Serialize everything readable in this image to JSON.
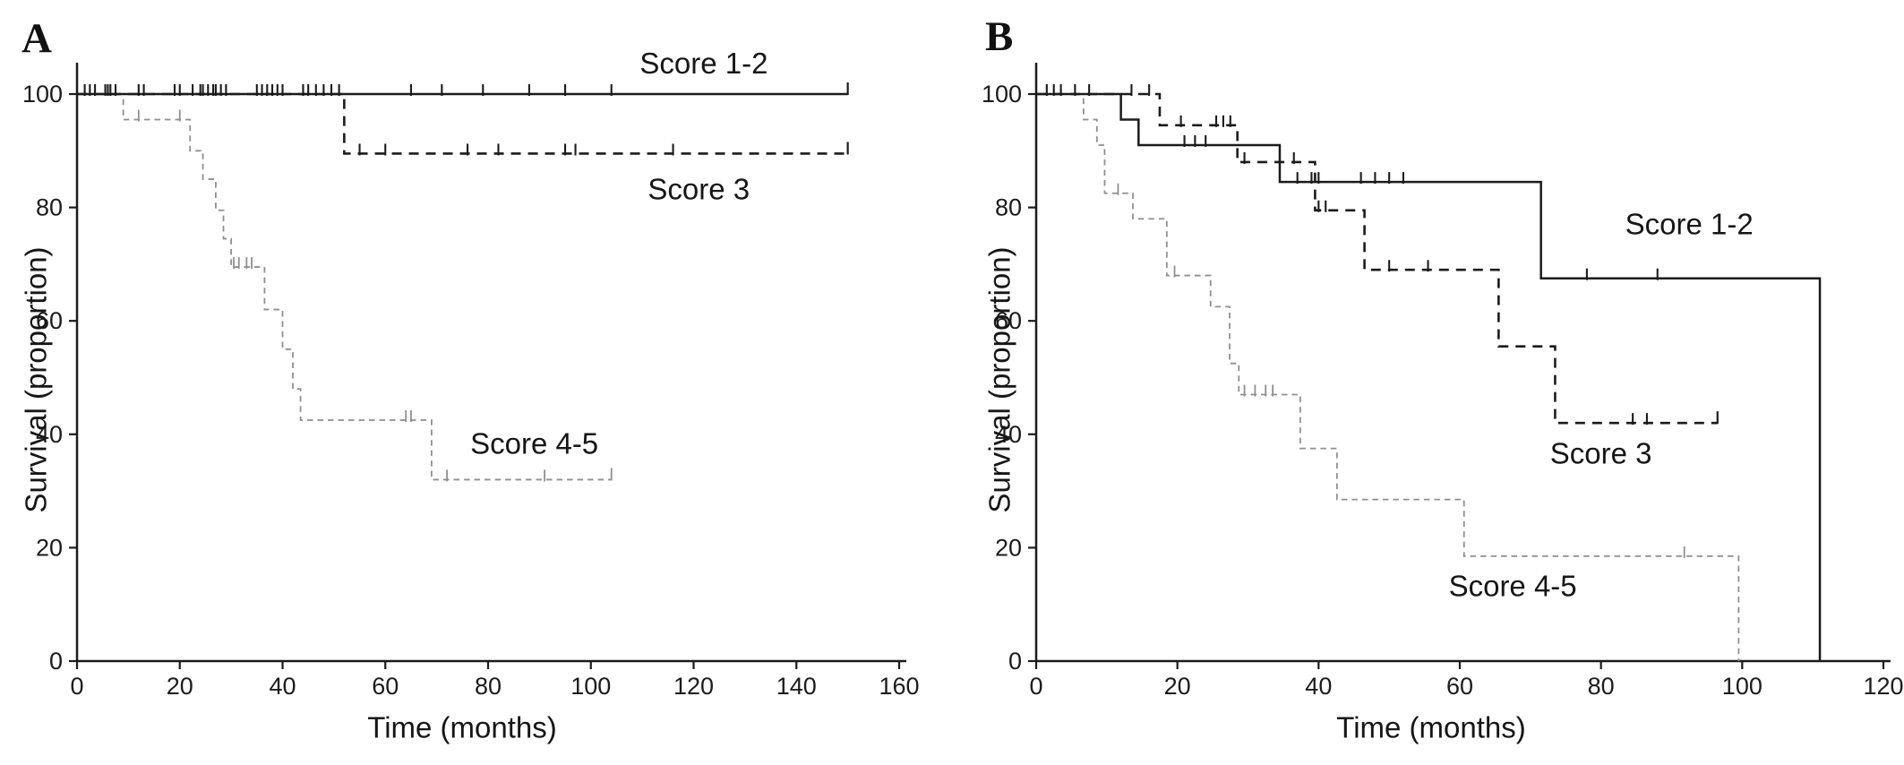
{
  "figure": {
    "background_color": "#ffffff",
    "text_color": "#161616",
    "description": "Two-panel Kaplan-Meier survival figure"
  },
  "chart_data": [
    {
      "type": "line",
      "subtype": "kaplan-meier-step",
      "panel_label": "A",
      "x_axis": {
        "title": "Time (months)",
        "min": 0,
        "max": 160,
        "ticks": [
          0,
          20,
          40,
          60,
          80,
          100,
          120,
          140,
          160
        ],
        "grid": false
      },
      "y_axis": {
        "title": "Survival (proportion)",
        "min": 0,
        "max": 100,
        "ticks": [
          0,
          20,
          40,
          60,
          80,
          100
        ],
        "grid": false
      },
      "legend_position": "labels-on-chart",
      "series": [
        {
          "name": "Score 1-2",
          "style": "solid",
          "color": "#1b1b1b",
          "stroke_width": 2.4,
          "label": {
            "text": "Score 1-2",
            "t": 122,
            "v": 105.4
          },
          "steps": [
            [
              0,
              100
            ]
          ],
          "end_t": 150,
          "end_marker": "tick",
          "censors": [
            [
              1.5,
              100
            ],
            [
              2.5,
              100
            ],
            [
              3.5,
              100
            ],
            [
              5.5,
              100
            ],
            [
              6,
              100
            ],
            [
              6.5,
              100
            ],
            [
              7.5,
              100
            ],
            [
              12,
              100
            ],
            [
              13,
              100
            ],
            [
              19,
              100
            ],
            [
              20,
              100
            ],
            [
              22.5,
              100
            ],
            [
              24,
              100
            ],
            [
              24.5,
              100
            ],
            [
              25.5,
              100
            ],
            [
              26.5,
              100
            ],
            [
              27,
              100
            ],
            [
              28,
              100
            ],
            [
              29,
              100
            ],
            [
              35,
              100
            ],
            [
              36,
              100
            ],
            [
              37,
              100
            ],
            [
              38,
              100
            ],
            [
              39,
              100
            ],
            [
              40,
              100
            ],
            [
              44,
              100
            ],
            [
              45,
              100
            ],
            [
              46.5,
              100
            ],
            [
              48,
              100
            ],
            [
              49.5,
              100
            ],
            [
              51,
              100
            ],
            [
              65,
              100
            ],
            [
              71,
              100
            ],
            [
              79,
              100
            ],
            [
              88,
              100
            ],
            [
              95,
              100
            ],
            [
              104,
              100
            ]
          ]
        },
        {
          "name": "Score 3",
          "style": "dashed",
          "color": "#1b1b1b",
          "stroke_width": 2.6,
          "label": {
            "text": "Score 3",
            "t": 121,
            "v": 83.2
          },
          "steps": [
            [
              0,
              100
            ],
            [
              52,
              89.5
            ]
          ],
          "end_t": 150,
          "end_marker": "tick",
          "censors": [
            [
              55,
              89.5
            ],
            [
              60,
              89.5
            ],
            [
              76,
              89.5
            ],
            [
              82,
              89.5
            ],
            [
              95,
              89.5
            ],
            [
              97,
              89.5
            ],
            [
              116,
              89.5
            ]
          ]
        },
        {
          "name": "Score 4-5",
          "style": "dashed",
          "color": "#8f8f8f",
          "stroke_width": 1.8,
          "label": {
            "text": "Score 4-5",
            "t": 89,
            "v": 38.3
          },
          "steps": [
            [
              0,
              100
            ],
            [
              9,
              95.5
            ],
            [
              22,
              90
            ],
            [
              24.5,
              85
            ],
            [
              27,
              79.5
            ],
            [
              28.5,
              74.5
            ],
            [
              30,
              69.5
            ],
            [
              36.5,
              62
            ],
            [
              40,
              55
            ],
            [
              42,
              48
            ],
            [
              43.5,
              42.5
            ],
            [
              69,
              32
            ]
          ],
          "end_t": 104,
          "end_marker": "tick",
          "censors": [
            [
              12,
              95.5
            ],
            [
              20,
              95.5
            ],
            [
              30.5,
              69.5
            ],
            [
              31.5,
              69.5
            ],
            [
              33,
              69.5
            ],
            [
              34,
              69.5
            ],
            [
              64,
              42.5
            ],
            [
              65,
              42.5
            ],
            [
              72,
              32
            ],
            [
              91,
              32
            ]
          ]
        }
      ]
    },
    {
      "type": "line",
      "subtype": "kaplan-meier-step",
      "panel_label": "B",
      "x_axis": {
        "title": "Time (months)",
        "min": 0,
        "max": 120,
        "ticks": [
          0,
          20,
          40,
          60,
          80,
          100,
          120
        ],
        "grid": false
      },
      "y_axis": {
        "title": "Survival (proportion)",
        "min": 0,
        "max": 100,
        "ticks": [
          0,
          20,
          40,
          60,
          80,
          100
        ],
        "grid": false
      },
      "legend_position": "labels-on-chart",
      "series": [
        {
          "name": "Score 1-2",
          "style": "solid",
          "color": "#1b1b1b",
          "stroke_width": 2.5,
          "label": {
            "text": "Score 1-2",
            "t": 92.5,
            "v": 77
          },
          "steps": [
            [
              0,
              100
            ],
            [
              12,
              95.5
            ],
            [
              14.5,
              91
            ],
            [
              34.5,
              84.5
            ],
            [
              71.5,
              67.5
            ],
            [
              111,
              0
            ]
          ],
          "end_t": 111,
          "end_marker": "none",
          "censors": [
            [
              1.5,
              100
            ],
            [
              2.5,
              100
            ],
            [
              3.5,
              100
            ],
            [
              5.5,
              100
            ],
            [
              7.5,
              100
            ],
            [
              21,
              91
            ],
            [
              22.5,
              91
            ],
            [
              24,
              91
            ],
            [
              37,
              84.5
            ],
            [
              39,
              84.5
            ],
            [
              40,
              84.5
            ],
            [
              46,
              84.5
            ],
            [
              48,
              84.5
            ],
            [
              50,
              84.5
            ],
            [
              52,
              84.5
            ],
            [
              78,
              67.5
            ],
            [
              88,
              67.5
            ]
          ]
        },
        {
          "name": "Score 3",
          "style": "dashed",
          "color": "#1b1b1b",
          "stroke_width": 2.6,
          "label": {
            "text": "Score 3",
            "t": 80,
            "v": 36.6
          },
          "steps": [
            [
              0,
              100
            ],
            [
              17.5,
              94.5
            ],
            [
              28.5,
              88
            ],
            [
              39.5,
              79.5
            ],
            [
              46.5,
              69
            ],
            [
              65.5,
              55.5
            ],
            [
              73.5,
              42
            ]
          ],
          "end_t": 96.5,
          "end_marker": "tick",
          "censors": [
            [
              13.5,
              100
            ],
            [
              16,
              100
            ],
            [
              20.5,
              94.5
            ],
            [
              25.5,
              94.5
            ],
            [
              26.5,
              94.5
            ],
            [
              27.5,
              94.5
            ],
            [
              29.5,
              88
            ],
            [
              36.5,
              88
            ],
            [
              40,
              79.5
            ],
            [
              41,
              79.5
            ],
            [
              50,
              69
            ],
            [
              55.5,
              69
            ],
            [
              84.5,
              42
            ],
            [
              86.5,
              42
            ]
          ]
        },
        {
          "name": "Score 4-5",
          "style": "dashed",
          "color": "#8f8f8f",
          "stroke_width": 1.8,
          "label": {
            "text": "Score 4-5",
            "t": 67.5,
            "v": 13.2
          },
          "steps": [
            [
              0,
              100
            ],
            [
              6.7,
              95.5
            ],
            [
              8.6,
              91
            ],
            [
              9.7,
              82.5
            ],
            [
              13.7,
              78
            ],
            [
              18.5,
              68
            ],
            [
              24.7,
              62.5
            ],
            [
              27.4,
              52.5
            ],
            [
              28.7,
              47
            ],
            [
              37.4,
              37.5
            ],
            [
              42.6,
              28.5
            ],
            [
              60.6,
              18.5
            ],
            [
              99.5,
              0
            ]
          ],
          "end_t": 99.5,
          "end_marker": "none",
          "censors": [
            [
              1.5,
              100
            ],
            [
              11.6,
              82.5
            ],
            [
              19.6,
              68
            ],
            [
              29.5,
              47
            ],
            [
              31,
              47
            ],
            [
              32.5,
              47
            ],
            [
              33.5,
              47
            ],
            [
              91.8,
              18.5
            ]
          ]
        }
      ]
    }
  ]
}
